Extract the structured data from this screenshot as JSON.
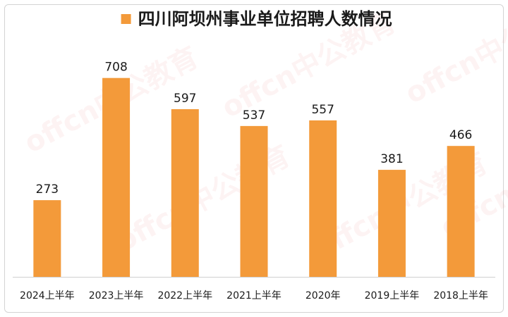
{
  "watermark_text": "offcn中公教育",
  "chart_data": {
    "type": "bar",
    "title": "",
    "legend": {
      "entries": [
        "四川阿坝州事业单位招聘人数情况"
      ],
      "position": "top"
    },
    "categories": [
      "2024上半年",
      "2023上半年",
      "2022上半年",
      "2021上半年",
      "2020年",
      "2019上半年",
      "2018上半年"
    ],
    "series": [
      {
        "name": "四川阿坝州事业单位招聘人数情况",
        "values": [
          273,
          708,
          597,
          537,
          557,
          381,
          466
        ],
        "color": "#F39A3A"
      }
    ],
    "ylim": [
      0,
      800
    ],
    "grid": false,
    "show_data_labels": true,
    "xlabel": "",
    "ylabel": ""
  }
}
